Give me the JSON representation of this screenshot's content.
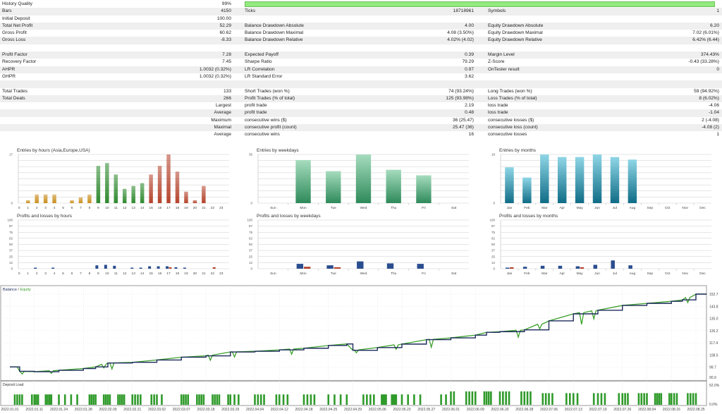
{
  "stats": {
    "history_quality": {
      "label": "History Quality",
      "value": "99%",
      "fraction": 0.99,
      "bar_color": "#93ea7f"
    },
    "rows": [
      [
        "Bars",
        "4150",
        "Ticks",
        "18718961",
        "Symbols",
        "1"
      ],
      [
        "Initial Deposit",
        "100.00",
        "",
        "",
        "",
        ""
      ],
      [
        "Total Net Profit",
        "52.29",
        "Balance Drawdown Absolute",
        "4.00",
        "Equity Drawdown Absolute",
        "6.20"
      ],
      [
        "Gross Profit",
        "60.62",
        "Balance Drawdown Maximal",
        "4.08 (3.50%)",
        "Equity Drawdown Maximal",
        "7.02 (6.01%)"
      ],
      [
        "Gross Loss",
        "-8.33",
        "Balance Drawdown Relative",
        "4.02% (4.02)",
        "Equity Drawdown Relative",
        "6.42% (6.44)"
      ],
      [
        "",
        "",
        "",
        "",
        "",
        ""
      ],
      [
        "Profit Factor",
        "7.28",
        "Expected Payoff",
        "0.39",
        "Margin Level",
        "374.43%"
      ],
      [
        "Recovery Factor",
        "7.45",
        "Sharpe Ratio",
        "79.29",
        "Z-Score",
        "-0.43 (33.28%)"
      ],
      [
        "AHPR",
        "1.0032 (0.32%)",
        "LR Correlation",
        "0.97",
        "OnTester result",
        "0"
      ],
      [
        "GHPR",
        "1.0032 (0.32%)",
        "LR Standard Error",
        "3.62",
        "",
        ""
      ],
      [
        "",
        "",
        "",
        "",
        "",
        ""
      ],
      [
        "Total Trades",
        "133",
        "Short Trades (won %)",
        "74 (93.24%)",
        "Long Trades (won %)",
        "59 (94.92%)"
      ],
      [
        "Total Deals",
        "266",
        "Profit Trades (% of total)",
        "125 (93.98%)",
        "Loss Trades (% of total)",
        "8 (6.02%)"
      ],
      [
        "",
        "Largest",
        "profit trade",
        "2.19",
        "loss trade",
        "-4.06"
      ],
      [
        "",
        "Average",
        "profit trade",
        "0.48",
        "loss trade",
        "-1.04"
      ],
      [
        "",
        "Maximum",
        "consecutive wins ($)",
        "36 (25.47)",
        "consecutive losses ($)",
        "2 (-4.08)"
      ],
      [
        "",
        "Maximal",
        "consecutive profit (count)",
        "25.47 (36)",
        "consecutive loss (count)",
        "-4.08 (2)"
      ],
      [
        "",
        "Average",
        "consecutive wins",
        "16",
        "consecutive losses",
        "1"
      ]
    ]
  },
  "chart_data": [
    {
      "id": "entries-hours",
      "type": "bar",
      "title": "Entries by hours (Asia,Europe,USA)",
      "categories": [
        "0",
        "1",
        "2",
        "3",
        "4",
        "5",
        "6",
        "7",
        "8",
        "9",
        "10",
        "11",
        "12",
        "13",
        "14",
        "15",
        "16",
        "17",
        "18",
        "19",
        "20",
        "21",
        "22",
        "23"
      ],
      "values": [
        0,
        1,
        3,
        3,
        3,
        0,
        1,
        2,
        3,
        13,
        14,
        10,
        5,
        6,
        7,
        10,
        13,
        17,
        11,
        4,
        1,
        6,
        0,
        0
      ],
      "ylim": [
        0,
        17
      ],
      "yticks": [
        "17",
        "0"
      ],
      "colors": {
        "asia": "#c98e1c",
        "europe": "#2f8a2f",
        "usa": "#b5432c"
      },
      "sessions": [
        "asia",
        "asia",
        "asia",
        "asia",
        "asia",
        "asia",
        "asia",
        "asia",
        "asia",
        "europe",
        "europe",
        "europe",
        "europe",
        "europe",
        "europe",
        "usa",
        "usa",
        "usa",
        "usa",
        "usa",
        "usa",
        "usa",
        "usa",
        "usa"
      ]
    },
    {
      "id": "entries-weekdays",
      "type": "bar",
      "title": "Entries by weekdays",
      "categories": [
        "Sun",
        "Mon",
        "Tue",
        "Wed",
        "Thu",
        "Fri",
        "Sat"
      ],
      "values": [
        0,
        31,
        23,
        35,
        24,
        20,
        0
      ],
      "ylim": [
        0,
        35
      ],
      "yticks": [
        "35",
        "0"
      ],
      "colors": {
        "top": "#a6dcbe",
        "bottom": "#2e8a5a"
      }
    },
    {
      "id": "entries-months",
      "type": "bar",
      "title": "Entries by months",
      "categories": [
        "Jan",
        "Feb",
        "Mar",
        "Apr",
        "May",
        "Jun",
        "Jul",
        "Aug",
        "Sep",
        "Oct",
        "Nov",
        "Dec"
      ],
      "values": [
        14,
        10,
        19,
        18,
        18,
        19,
        18,
        17,
        0,
        0,
        0,
        0
      ],
      "ylim": [
        0,
        19
      ],
      "yticks": [
        "19",
        "0"
      ],
      "colors": {
        "top": "#8fd6e6",
        "bottom": "#0f6c86"
      }
    },
    {
      "id": "pl-hours",
      "type": "bar",
      "title": "Profits and losses by hours",
      "categories": [
        "0",
        "1",
        "2",
        "3",
        "4",
        "5",
        "6",
        "7",
        "8",
        "9",
        "10",
        "11",
        "12",
        "13",
        "14",
        "15",
        "16",
        "17",
        "18",
        "19",
        "20",
        "21",
        "22",
        "23"
      ],
      "series": [
        {
          "values": [
            0,
            0,
            1,
            0,
            1,
            0,
            0,
            0,
            0,
            7,
            8,
            6,
            0,
            2,
            2,
            5,
            5,
            5,
            3,
            1,
            0,
            0,
            0,
            0
          ],
          "color": "#2a4d8f"
        },
        {
          "values": [
            0,
            0,
            0,
            0,
            0,
            0,
            0,
            0,
            0,
            0,
            0,
            0,
            0,
            0,
            0,
            0,
            0,
            3,
            0,
            0,
            0,
            0,
            3,
            0
          ],
          "color": "#b5432c"
        }
      ],
      "ylim": [
        0,
        100
      ],
      "yticks": [
        "100",
        "87",
        "75",
        "62",
        "50",
        "37",
        "25",
        "12",
        "0"
      ]
    },
    {
      "id": "pl-weekdays",
      "type": "bar",
      "title": "Profits and losses by weekdays",
      "categories": [
        "Sun",
        "Mon",
        "Tue",
        "Wed",
        "Thu",
        "Fri",
        "Sat"
      ],
      "series": [
        {
          "values": [
            0,
            10,
            7,
            15,
            11,
            10,
            0
          ],
          "color": "#2a4d8f"
        },
        {
          "values": [
            0,
            4,
            3,
            0,
            0,
            0,
            0
          ],
          "color": "#b5432c"
        }
      ],
      "ylim": [
        0,
        100
      ],
      "yticks": [
        "100",
        "87",
        "75",
        "62",
        "50",
        "37",
        "25",
        "12",
        "0"
      ]
    },
    {
      "id": "pl-months",
      "type": "bar",
      "title": "Profits and losses by months",
      "categories": [
        "Jan",
        "Feb",
        "Mar",
        "Apr",
        "May",
        "Jun",
        "Jul",
        "Aug",
        "Sep",
        "Oct",
        "Nov",
        "Dec"
      ],
      "series": [
        {
          "values": [
            2,
            4,
            6,
            6,
            5,
            8,
            17,
            7,
            0,
            0,
            0,
            0
          ],
          "color": "#2a4d8f"
        },
        {
          "values": [
            3,
            0,
            0,
            0,
            3,
            0,
            0,
            0,
            0,
            0,
            0,
            0
          ],
          "color": "#b5432c"
        }
      ],
      "ylim": [
        0,
        100
      ],
      "yticks": [
        "100",
        "87",
        "75",
        "62",
        "50",
        "37",
        "25",
        "12",
        "0"
      ]
    },
    {
      "id": "balance",
      "type": "line",
      "legend": {
        "balance": "Balance",
        "separator": " / ",
        "equity": "Equity"
      },
      "colors": {
        "balance": "#1d2a5c",
        "equity": "#3aa02a"
      },
      "yticks": [
        "152.7",
        "143.8",
        "135.0",
        "126.2",
        "117.4",
        "108.5",
        "99.7",
        "90.9"
      ],
      "ylim": [
        90.9,
        152.7
      ],
      "xticks": [
        "2022.01.01",
        "2022.01.11",
        "2022.01.24",
        "2022.01.28",
        "2022.02.09",
        "2022.02.21",
        "2022.03.02",
        "2022.03.07",
        "2022.03.18",
        "2022.03.29",
        "2022.04.04",
        "2022.04.12",
        "2022.04.18",
        "2022.04.25",
        "2022.04.29",
        "2022.05.06",
        "2022.05.23",
        "2022.05.27",
        "2022.06.01",
        "2022.06.09",
        "2022.06.20",
        "2022.06.28",
        "2022.07.06",
        "2022.07.13",
        "2022.07.19",
        "2022.07.26",
        "2022.08.04",
        "2022.08.16",
        "2022.08.25"
      ],
      "balance": [
        [
          "2022.01.01",
          100
        ],
        [
          "2022.01.04",
          100
        ],
        [
          "2022.01.05",
          96.8
        ],
        [
          "2022.01.11",
          96.5
        ],
        [
          "2022.01.24",
          97.5
        ],
        [
          "2022.01.28",
          98.8
        ],
        [
          "2022.02.03",
          100
        ],
        [
          "2022.02.09",
          102.8
        ],
        [
          "2022.02.21",
          103.3
        ],
        [
          "2022.03.02",
          105
        ],
        [
          "2022.03.07",
          107
        ],
        [
          "2022.03.18",
          108
        ],
        [
          "2022.03.29",
          110.8
        ],
        [
          "2022.04.04",
          111.3
        ],
        [
          "2022.04.12",
          112.3
        ],
        [
          "2022.04.18",
          113.5
        ],
        [
          "2022.04.25",
          115.5
        ],
        [
          "2022.04.28",
          116.6
        ],
        [
          "2022.04.29",
          112
        ],
        [
          "2022.05.06",
          114
        ],
        [
          "2022.05.23",
          116.5
        ],
        [
          "2022.05.27",
          119.7
        ],
        [
          "2022.06.01",
          121
        ],
        [
          "2022.06.09",
          123
        ],
        [
          "2022.06.14",
          125
        ],
        [
          "2022.06.20",
          125.5
        ],
        [
          "2022.06.28",
          126.8
        ],
        [
          "2022.07.06",
          133.3
        ],
        [
          "2022.07.13",
          138.4
        ],
        [
          "2022.07.19",
          141
        ],
        [
          "2022.07.26",
          144.5
        ],
        [
          "2022.08.04",
          146
        ],
        [
          "2022.08.16",
          147.5
        ],
        [
          "2022.08.20",
          148.5
        ],
        [
          "2022.08.25",
          152.7
        ],
        [
          "2022.08.29",
          152.7
        ]
      ],
      "equity_dips": [
        [
          "2022.01.06",
          94.8
        ],
        [
          "2022.01.20",
          95.3
        ],
        [
          "2022.02.07",
          99.3
        ],
        [
          "2022.02.11",
          98.5
        ],
        [
          "2022.03.20",
          104.8
        ],
        [
          "2022.03.30",
          107.2
        ],
        [
          "2022.04.15",
          109.2
        ],
        [
          "2022.04.30",
          110.2
        ],
        [
          "2022.05.19",
          112.8
        ],
        [
          "2022.05.28",
          114.2
        ],
        [
          "2022.06.26",
          121.5
        ],
        [
          "2022.07.03",
          127.5
        ],
        [
          "2022.07.15",
          130.8
        ],
        [
          "2022.07.18",
          134.8
        ],
        [
          "2022.08.22",
          146.6
        ]
      ]
    },
    {
      "id": "deposit-load",
      "type": "bar",
      "title": "Deposit Load",
      "yticks": [
        "52.0%",
        "0.0%"
      ],
      "ylim": [
        0,
        52
      ],
      "color": "#2f9a2a",
      "bg_color": "#c8f0b8",
      "segments": [
        {
          "from": "2022.01.03",
          "to": "2022.05.31",
          "value": 24
        },
        {
          "from": "2022.06.01",
          "to": "2022.06.30",
          "value": 31
        },
        {
          "from": "2022.07.01",
          "to": "2022.08.26",
          "value": 27
        }
      ]
    }
  ]
}
